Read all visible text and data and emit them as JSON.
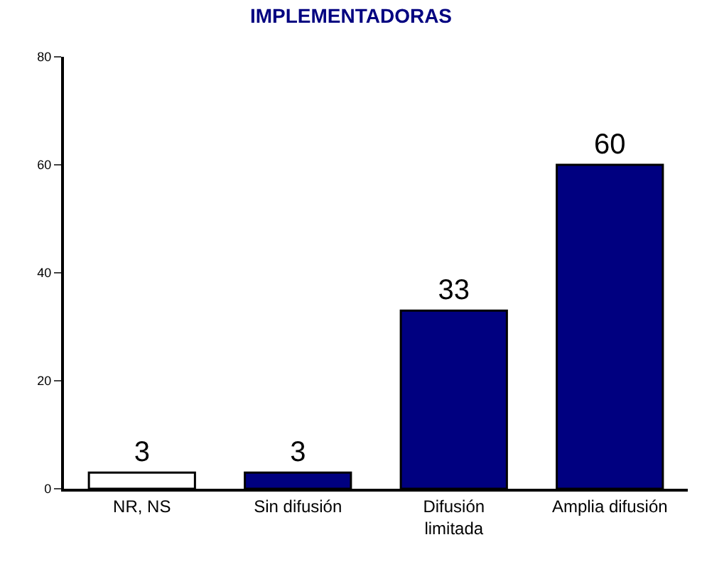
{
  "chart_data": {
    "type": "bar",
    "title": "IMPLEMENTADORAS",
    "categories": [
      "NR, NS",
      "Sin difusión",
      "Difusión\nlimitada",
      "Amplia difusión"
    ],
    "values": [
      3,
      3,
      33,
      60
    ],
    "colors": [
      "#ffffff",
      "#000080",
      "#000080",
      "#000080"
    ],
    "ylim": [
      0,
      80
    ],
    "yticks": [
      0,
      20,
      40,
      60,
      80
    ],
    "data_labels": true
  }
}
